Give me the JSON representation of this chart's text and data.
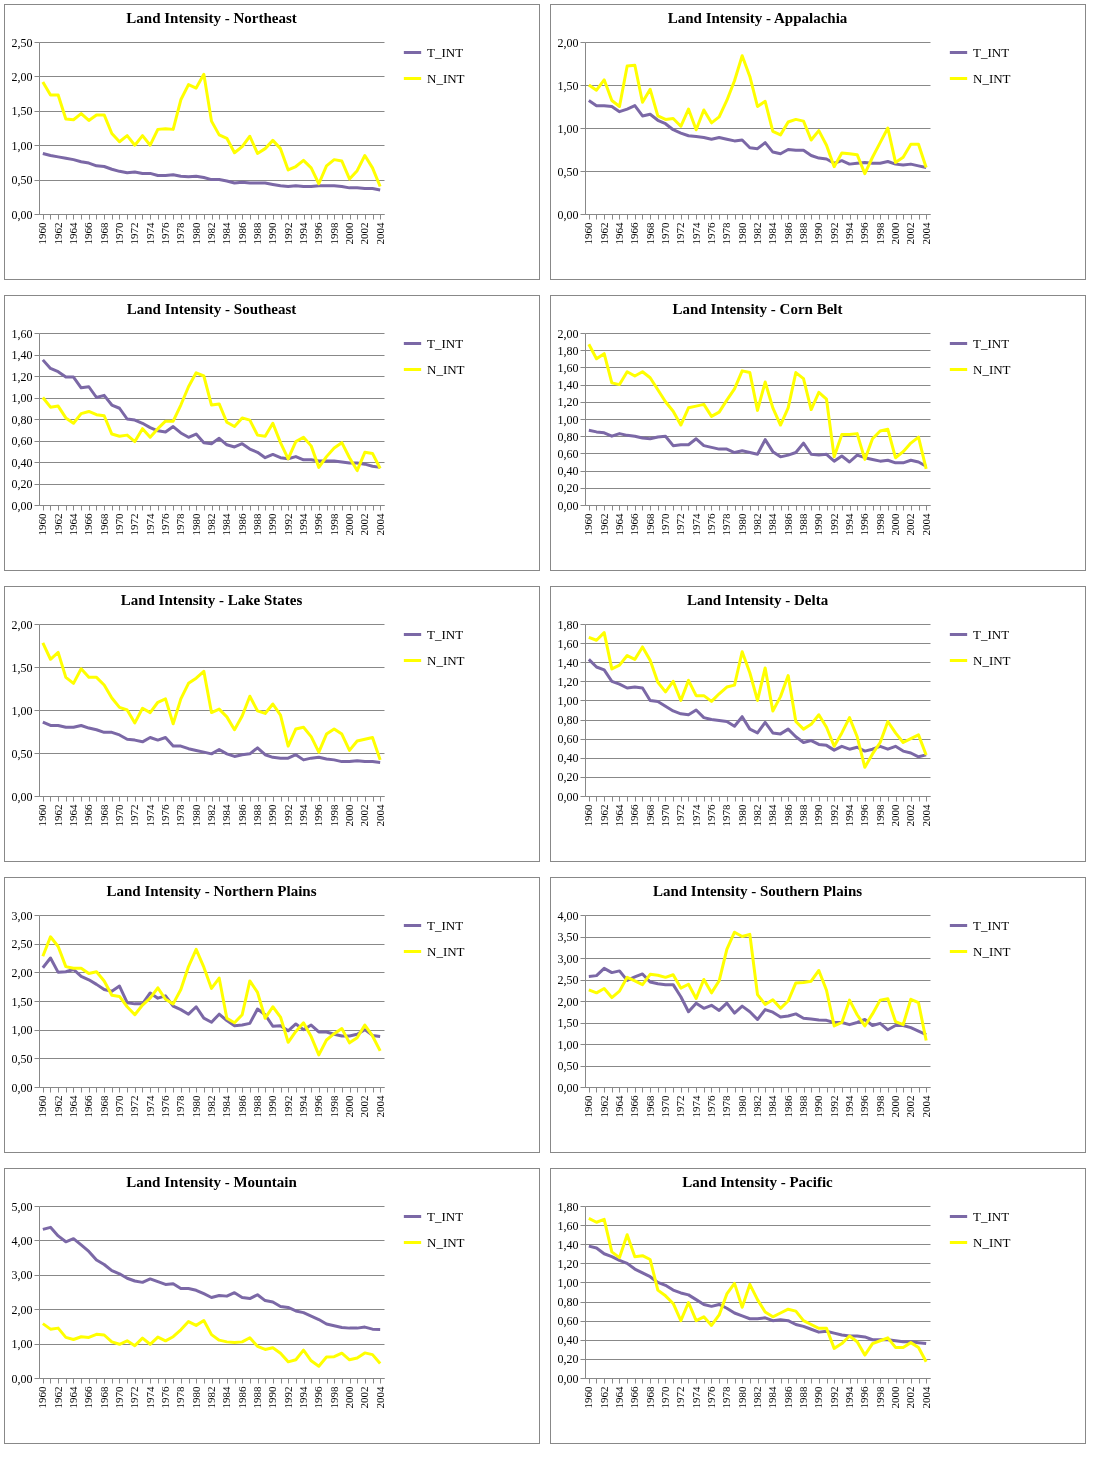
{
  "chart_data": [
    {
      "type": "line",
      "title": "Land Intensity - Northeast",
      "categories": [
        "1960",
        null,
        "1962",
        null,
        "1964",
        null,
        "1966",
        null,
        "1968",
        null,
        "1970",
        null,
        "1972",
        null,
        "1974",
        null,
        "1976",
        null,
        "1978",
        null,
        "1980",
        null,
        "1982",
        null,
        "1984",
        null,
        "1986",
        null,
        "1988",
        null,
        "1990",
        null,
        "1992",
        null,
        "1994",
        null,
        "1996",
        null,
        "1998",
        null,
        "2000",
        null,
        "2002",
        null,
        "2004"
      ],
      "ylim": [
        0,
        2.5
      ],
      "yticks": [
        {
          "value": 0,
          "label": "0,00"
        },
        {
          "value": 0.5,
          "label": "0,50"
        },
        {
          "value": 1,
          "label": "1,00"
        },
        {
          "value": 1.5,
          "label": "1,50"
        },
        {
          "value": 2,
          "label": "2,00"
        },
        {
          "value": 2.5,
          "label": "2,50"
        }
      ],
      "grid": "y",
      "legend": "right",
      "series": [
        {
          "name": "T_INT",
          "color": "#7b68a6",
          "values": [
            0.88,
            0.85,
            0.83,
            0.81,
            0.79,
            0.76,
            0.74,
            0.7,
            0.69,
            0.65,
            0.62,
            0.6,
            0.61,
            0.59,
            0.59,
            0.56,
            0.56,
            0.57,
            0.55,
            0.54,
            0.55,
            0.53,
            0.5,
            0.5,
            0.48,
            0.45,
            0.46,
            0.45,
            0.45,
            0.45,
            0.43,
            0.41,
            0.4,
            0.41,
            0.4,
            0.4,
            0.41,
            0.41,
            0.41,
            0.4,
            0.38,
            0.38,
            0.37,
            0.37,
            0.35
          ]
        },
        {
          "name": "N_INT",
          "color": "#ffff00",
          "values": [
            1.92,
            1.73,
            1.73,
            1.38,
            1.37,
            1.46,
            1.36,
            1.44,
            1.44,
            1.17,
            1.05,
            1.14,
            1.0,
            1.14,
            1.0,
            1.23,
            1.24,
            1.23,
            1.66,
            1.88,
            1.83,
            2.03,
            1.35,
            1.15,
            1.1,
            0.89,
            0.98,
            1.13,
            0.88,
            0.95,
            1.07,
            0.95,
            0.64,
            0.69,
            0.78,
            0.67,
            0.44,
            0.7,
            0.79,
            0.77,
            0.51,
            0.63,
            0.85,
            0.67,
            0.4
          ]
        }
      ]
    },
    {
      "type": "line",
      "title": "Land Intensity - Appalachia",
      "categories": [
        "1960",
        null,
        "1962",
        null,
        "1964",
        null,
        "1966",
        null,
        "1968",
        null,
        "1970",
        null,
        "1972",
        null,
        "1974",
        null,
        "1976",
        null,
        "1978",
        null,
        "1980",
        null,
        "1982",
        null,
        "1984",
        null,
        "1986",
        null,
        "1988",
        null,
        "1990",
        null,
        "1992",
        null,
        "1994",
        null,
        "1996",
        null,
        "1998",
        null,
        "2000",
        null,
        "2002",
        null,
        "2004"
      ],
      "ylim": [
        0,
        2
      ],
      "yticks": [
        {
          "value": 0,
          "label": "0,00"
        },
        {
          "value": 0.5,
          "label": "0,50"
        },
        {
          "value": 1,
          "label": "1,00"
        },
        {
          "value": 1.5,
          "label": "1,50"
        },
        {
          "value": 2,
          "label": "2,00"
        }
      ],
      "grid": "y",
      "legend": "right",
      "series": [
        {
          "name": "T_INT",
          "color": "#7b68a6",
          "values": [
            1.32,
            1.26,
            1.26,
            1.25,
            1.19,
            1.22,
            1.26,
            1.14,
            1.16,
            1.09,
            1.05,
            0.98,
            0.94,
            0.91,
            0.9,
            0.89,
            0.87,
            0.89,
            0.87,
            0.85,
            0.86,
            0.77,
            0.76,
            0.83,
            0.72,
            0.7,
            0.75,
            0.74,
            0.74,
            0.68,
            0.65,
            0.64,
            0.59,
            0.62,
            0.58,
            0.59,
            0.6,
            0.59,
            0.59,
            0.61,
            0.58,
            0.57,
            0.58,
            0.56,
            0.54
          ]
        },
        {
          "name": "N_INT",
          "color": "#ffff00",
          "values": [
            1.5,
            1.44,
            1.56,
            1.32,
            1.25,
            1.72,
            1.73,
            1.3,
            1.45,
            1.14,
            1.1,
            1.11,
            1.02,
            1.22,
            0.98,
            1.21,
            1.06,
            1.13,
            1.32,
            1.55,
            1.84,
            1.6,
            1.25,
            1.31,
            0.96,
            0.92,
            1.07,
            1.1,
            1.08,
            0.86,
            0.97,
            0.8,
            0.55,
            0.71,
            0.7,
            0.69,
            0.47,
            0.66,
            0.83,
            1.0,
            0.6,
            0.66,
            0.81,
            0.81,
            0.54
          ]
        }
      ]
    },
    {
      "type": "line",
      "title": "Land Intensity - Southeast",
      "categories": [
        "1960",
        null,
        "1962",
        null,
        "1964",
        null,
        "1966",
        null,
        "1968",
        null,
        "1970",
        null,
        "1972",
        null,
        "1974",
        null,
        "1976",
        null,
        "1978",
        null,
        "1980",
        null,
        "1982",
        null,
        "1984",
        null,
        "1986",
        null,
        "1988",
        null,
        "1990",
        null,
        "1992",
        null,
        "1994",
        null,
        "1996",
        null,
        "1998",
        null,
        "2000",
        null,
        "2002",
        null,
        "2004"
      ],
      "ylim": [
        0,
        1.6
      ],
      "yticks": [
        {
          "value": 0,
          "label": "0,00"
        },
        {
          "value": 0.2,
          "label": "0,20"
        },
        {
          "value": 0.4,
          "label": "0,40"
        },
        {
          "value": 0.6,
          "label": "0,60"
        },
        {
          "value": 0.8,
          "label": "0,80"
        },
        {
          "value": 1,
          "label": "1,00"
        },
        {
          "value": 1.2,
          "label": "1,20"
        },
        {
          "value": 1.4,
          "label": "1,40"
        },
        {
          "value": 1.6,
          "label": "1,60"
        }
      ],
      "grid": "y",
      "legend": "right",
      "series": [
        {
          "name": "T_INT",
          "color": "#7b68a6",
          "values": [
            1.35,
            1.27,
            1.24,
            1.19,
            1.19,
            1.09,
            1.1,
            1.0,
            1.02,
            0.93,
            0.9,
            0.8,
            0.79,
            0.76,
            0.72,
            0.69,
            0.68,
            0.73,
            0.67,
            0.63,
            0.66,
            0.58,
            0.57,
            0.62,
            0.56,
            0.54,
            0.57,
            0.52,
            0.49,
            0.44,
            0.47,
            0.44,
            0.43,
            0.45,
            0.42,
            0.42,
            0.41,
            0.41,
            0.41,
            0.4,
            0.39,
            0.39,
            0.38,
            0.36,
            0.35
          ]
        },
        {
          "name": "N_INT",
          "color": "#ffff00",
          "values": [
            1.0,
            0.91,
            0.92,
            0.81,
            0.76,
            0.85,
            0.87,
            0.84,
            0.83,
            0.66,
            0.64,
            0.65,
            0.59,
            0.71,
            0.63,
            0.71,
            0.78,
            0.78,
            0.93,
            1.1,
            1.23,
            1.2,
            0.93,
            0.94,
            0.77,
            0.73,
            0.81,
            0.79,
            0.65,
            0.64,
            0.76,
            0.58,
            0.43,
            0.59,
            0.63,
            0.55,
            0.35,
            0.45,
            0.53,
            0.58,
            0.44,
            0.32,
            0.49,
            0.48,
            0.34
          ]
        }
      ]
    },
    {
      "type": "line",
      "title": "Land Intensity - Corn Belt",
      "categories": [
        "1960",
        null,
        "1962",
        null,
        "1964",
        null,
        "1966",
        null,
        "1968",
        null,
        "1970",
        null,
        "1972",
        null,
        "1974",
        null,
        "1976",
        null,
        "1978",
        null,
        "1980",
        null,
        "1982",
        null,
        "1984",
        null,
        "1986",
        null,
        "1988",
        null,
        "1990",
        null,
        "1992",
        null,
        "1994",
        null,
        "1996",
        null,
        "1998",
        null,
        "2000",
        null,
        "2002",
        null,
        "2004"
      ],
      "ylim": [
        0,
        2
      ],
      "yticks": [
        {
          "value": 0,
          "label": "0,00"
        },
        {
          "value": 0.2,
          "label": "0,20"
        },
        {
          "value": 0.4,
          "label": "0,40"
        },
        {
          "value": 0.6,
          "label": "0,60"
        },
        {
          "value": 0.8,
          "label": "0,80"
        },
        {
          "value": 1,
          "label": "1,00"
        },
        {
          "value": 1.2,
          "label": "1,20"
        },
        {
          "value": 1.4,
          "label": "1,40"
        },
        {
          "value": 1.6,
          "label": "1,60"
        },
        {
          "value": 1.8,
          "label": "1,80"
        },
        {
          "value": 2,
          "label": "2,00"
        }
      ],
      "grid": "y",
      "legend": "right",
      "series": [
        {
          "name": "T_INT",
          "color": "#7b68a6",
          "values": [
            0.87,
            0.85,
            0.84,
            0.8,
            0.83,
            0.81,
            0.8,
            0.78,
            0.77,
            0.79,
            0.8,
            0.69,
            0.7,
            0.7,
            0.77,
            0.69,
            0.67,
            0.65,
            0.65,
            0.61,
            0.63,
            0.61,
            0.59,
            0.76,
            0.62,
            0.56,
            0.58,
            0.61,
            0.72,
            0.59,
            0.58,
            0.59,
            0.51,
            0.57,
            0.5,
            0.58,
            0.55,
            0.53,
            0.51,
            0.52,
            0.49,
            0.49,
            0.52,
            0.5,
            0.45
          ]
        },
        {
          "name": "N_INT",
          "color": "#ffff00",
          "values": [
            1.87,
            1.7,
            1.76,
            1.42,
            1.4,
            1.55,
            1.5,
            1.55,
            1.48,
            1.34,
            1.2,
            1.09,
            0.93,
            1.13,
            1.15,
            1.17,
            1.03,
            1.08,
            1.22,
            1.35,
            1.56,
            1.54,
            1.1,
            1.43,
            1.13,
            0.93,
            1.13,
            1.54,
            1.47,
            1.11,
            1.31,
            1.23,
            0.56,
            0.82,
            0.82,
            0.83,
            0.53,
            0.77,
            0.86,
            0.88,
            0.55,
            0.62,
            0.72,
            0.79,
            0.42
          ]
        }
      ]
    },
    {
      "type": "line",
      "title": "Land Intensity - Lake States",
      "categories": [
        "1960",
        null,
        "1962",
        null,
        "1964",
        null,
        "1966",
        null,
        "1968",
        null,
        "1970",
        null,
        "1972",
        null,
        "1974",
        null,
        "1976",
        null,
        "1978",
        null,
        "1980",
        null,
        "1982",
        null,
        "1984",
        null,
        "1986",
        null,
        "1988",
        null,
        "1990",
        null,
        "1992",
        null,
        "1994",
        null,
        "1996",
        null,
        "1998",
        null,
        "2000",
        null,
        "2002",
        null,
        "2004"
      ],
      "ylim": [
        0,
        2
      ],
      "yticks": [
        {
          "value": 0,
          "label": "0,00"
        },
        {
          "value": 0.5,
          "label": "0,50"
        },
        {
          "value": 1,
          "label": "1,00"
        },
        {
          "value": 1.5,
          "label": "1,50"
        },
        {
          "value": 2,
          "label": "2,00"
        }
      ],
      "grid": "y",
      "legend": "right",
      "series": [
        {
          "name": "T_INT",
          "color": "#7b68a6",
          "values": [
            0.86,
            0.82,
            0.82,
            0.8,
            0.8,
            0.82,
            0.79,
            0.77,
            0.74,
            0.74,
            0.71,
            0.66,
            0.65,
            0.63,
            0.68,
            0.65,
            0.68,
            0.58,
            0.58,
            0.55,
            0.53,
            0.51,
            0.49,
            0.54,
            0.49,
            0.46,
            0.48,
            0.49,
            0.56,
            0.48,
            0.45,
            0.44,
            0.44,
            0.48,
            0.42,
            0.44,
            0.45,
            0.43,
            0.42,
            0.4,
            0.4,
            0.41,
            0.4,
            0.4,
            0.39
          ]
        },
        {
          "name": "N_INT",
          "color": "#ffff00",
          "values": [
            1.78,
            1.59,
            1.67,
            1.38,
            1.31,
            1.48,
            1.38,
            1.38,
            1.29,
            1.14,
            1.03,
            1.0,
            0.85,
            1.02,
            0.97,
            1.09,
            1.13,
            0.84,
            1.13,
            1.31,
            1.37,
            1.45,
            0.97,
            1.01,
            0.92,
            0.77,
            0.93,
            1.16,
            0.99,
            0.96,
            1.07,
            0.94,
            0.58,
            0.78,
            0.8,
            0.69,
            0.51,
            0.72,
            0.78,
            0.72,
            0.53,
            0.64,
            0.66,
            0.68,
            0.42
          ]
        }
      ]
    },
    {
      "type": "line",
      "title": "Land Intensity - Delta",
      "categories": [
        "1960",
        null,
        "1962",
        null,
        "1964",
        null,
        "1966",
        null,
        "1968",
        null,
        "1970",
        null,
        "1972",
        null,
        "1974",
        null,
        "1976",
        null,
        "1978",
        null,
        "1980",
        null,
        "1982",
        null,
        "1984",
        null,
        "1986",
        null,
        "1988",
        null,
        "1990",
        null,
        "1992",
        null,
        "1994",
        null,
        "1996",
        null,
        "1998",
        null,
        "2000",
        null,
        "2002",
        null,
        "2004"
      ],
      "ylim": [
        0,
        1.8
      ],
      "yticks": [
        {
          "value": 0,
          "label": "0,00"
        },
        {
          "value": 0.2,
          "label": "0,20"
        },
        {
          "value": 0.4,
          "label": "0,40"
        },
        {
          "value": 0.6,
          "label": "0,60"
        },
        {
          "value": 0.8,
          "label": "0,80"
        },
        {
          "value": 1,
          "label": "1,00"
        },
        {
          "value": 1.2,
          "label": "1,20"
        },
        {
          "value": 1.4,
          "label": "1,40"
        },
        {
          "value": 1.6,
          "label": "1,60"
        },
        {
          "value": 1.8,
          "label": "1,80"
        }
      ],
      "grid": "y",
      "legend": "right",
      "series": [
        {
          "name": "T_INT",
          "color": "#7b68a6",
          "values": [
            1.43,
            1.35,
            1.32,
            1.2,
            1.17,
            1.13,
            1.14,
            1.13,
            1.0,
            0.99,
            0.94,
            0.89,
            0.86,
            0.85,
            0.9,
            0.82,
            0.8,
            0.79,
            0.78,
            0.73,
            0.83,
            0.7,
            0.66,
            0.77,
            0.66,
            0.65,
            0.7,
            0.62,
            0.56,
            0.58,
            0.54,
            0.53,
            0.48,
            0.52,
            0.49,
            0.51,
            0.47,
            0.49,
            0.52,
            0.49,
            0.52,
            0.47,
            0.45,
            0.41,
            0.43
          ]
        },
        {
          "name": "N_INT",
          "color": "#ffff00",
          "values": [
            1.66,
            1.63,
            1.71,
            1.33,
            1.37,
            1.47,
            1.43,
            1.56,
            1.42,
            1.19,
            1.09,
            1.2,
            1.0,
            1.21,
            1.05,
            1.05,
            0.99,
            1.07,
            1.14,
            1.16,
            1.51,
            1.29,
            1.0,
            1.34,
            0.89,
            1.04,
            1.26,
            0.78,
            0.7,
            0.75,
            0.85,
            0.72,
            0.52,
            0.66,
            0.82,
            0.62,
            0.3,
            0.44,
            0.56,
            0.78,
            0.66,
            0.56,
            0.6,
            0.64,
            0.43
          ]
        }
      ]
    },
    {
      "type": "line",
      "title": "Land Intensity - Northern Plains",
      "categories": [
        "1960",
        null,
        "1962",
        null,
        "1964",
        null,
        "1966",
        null,
        "1968",
        null,
        "1970",
        null,
        "1972",
        null,
        "1974",
        null,
        "1976",
        null,
        "1978",
        null,
        "1980",
        null,
        "1982",
        null,
        "1984",
        null,
        "1986",
        null,
        "1988",
        null,
        "1990",
        null,
        "1992",
        null,
        "1994",
        null,
        "1996",
        null,
        "1998",
        null,
        "2000",
        null,
        "2002",
        null,
        "2004"
      ],
      "ylim": [
        0,
        3
      ],
      "yticks": [
        {
          "value": 0,
          "label": "0,00"
        },
        {
          "value": 0.5,
          "label": "0,50"
        },
        {
          "value": 1,
          "label": "1,00"
        },
        {
          "value": 1.5,
          "label": "1,50"
        },
        {
          "value": 2,
          "label": "2,00"
        },
        {
          "value": 2.5,
          "label": "2,50"
        },
        {
          "value": 3,
          "label": "3,00"
        }
      ],
      "grid": "y",
      "legend": "right",
      "series": [
        {
          "name": "T_INT",
          "color": "#7b68a6",
          "values": [
            2.08,
            2.25,
            2.0,
            2.01,
            2.05,
            1.93,
            1.87,
            1.79,
            1.7,
            1.67,
            1.76,
            1.47,
            1.45,
            1.45,
            1.64,
            1.55,
            1.59,
            1.41,
            1.35,
            1.27,
            1.4,
            1.2,
            1.13,
            1.27,
            1.16,
            1.07,
            1.08,
            1.11,
            1.36,
            1.26,
            1.06,
            1.07,
            0.98,
            1.1,
            1.0,
            1.08,
            0.96,
            0.96,
            0.92,
            0.89,
            0.89,
            0.92,
            1.0,
            0.9,
            0.88
          ]
        },
        {
          "name": "N_INT",
          "color": "#ffff00",
          "values": [
            2.28,
            2.62,
            2.45,
            2.1,
            2.07,
            2.07,
            1.98,
            2.01,
            1.85,
            1.6,
            1.58,
            1.4,
            1.26,
            1.43,
            1.55,
            1.73,
            1.53,
            1.45,
            1.7,
            2.1,
            2.4,
            2.09,
            1.72,
            1.9,
            1.2,
            1.12,
            1.26,
            1.85,
            1.65,
            1.2,
            1.4,
            1.22,
            0.78,
            0.97,
            1.12,
            0.88,
            0.56,
            0.82,
            0.93,
            1.02,
            0.77,
            0.86,
            1.08,
            0.89,
            0.63
          ]
        }
      ]
    },
    {
      "type": "line",
      "title": "Land Intensity - Southern Plains",
      "categories": [
        "1960",
        null,
        "1962",
        null,
        "1964",
        null,
        "1966",
        null,
        "1968",
        null,
        "1970",
        null,
        "1972",
        null,
        "1974",
        null,
        "1976",
        null,
        "1978",
        null,
        "1980",
        null,
        "1982",
        null,
        "1984",
        null,
        "1986",
        null,
        "1988",
        null,
        "1990",
        null,
        "1992",
        null,
        "1994",
        null,
        "1996",
        null,
        "1998",
        null,
        "2000",
        null,
        "2002",
        null,
        "2004"
      ],
      "ylim": [
        0,
        4
      ],
      "yticks": [
        {
          "value": 0,
          "label": "0,00"
        },
        {
          "value": 0.5,
          "label": "0,50"
        },
        {
          "value": 1,
          "label": "1,00"
        },
        {
          "value": 1.5,
          "label": "1,50"
        },
        {
          "value": 2,
          "label": "2,00"
        },
        {
          "value": 2.5,
          "label": "2,50"
        },
        {
          "value": 3,
          "label": "3,00"
        },
        {
          "value": 3.5,
          "label": "3,50"
        },
        {
          "value": 4,
          "label": "4,00"
        }
      ],
      "grid": "y",
      "legend": "right",
      "series": [
        {
          "name": "T_INT",
          "color": "#7b68a6",
          "values": [
            2.57,
            2.59,
            2.76,
            2.66,
            2.7,
            2.48,
            2.56,
            2.63,
            2.44,
            2.4,
            2.38,
            2.38,
            2.1,
            1.75,
            1.95,
            1.83,
            1.9,
            1.78,
            1.95,
            1.72,
            1.88,
            1.75,
            1.57,
            1.8,
            1.74,
            1.63,
            1.65,
            1.7,
            1.6,
            1.58,
            1.56,
            1.55,
            1.5,
            1.5,
            1.45,
            1.5,
            1.57,
            1.43,
            1.48,
            1.33,
            1.43,
            1.43,
            1.38,
            1.3,
            1.22
          ]
        },
        {
          "name": "N_INT",
          "color": "#ffff00",
          "values": [
            2.26,
            2.19,
            2.29,
            2.08,
            2.23,
            2.55,
            2.47,
            2.38,
            2.62,
            2.6,
            2.55,
            2.61,
            2.3,
            2.39,
            2.06,
            2.5,
            2.19,
            2.47,
            3.2,
            3.6,
            3.5,
            3.55,
            2.15,
            1.92,
            2.03,
            1.83,
            2.0,
            2.42,
            2.43,
            2.46,
            2.71,
            2.25,
            1.42,
            1.5,
            2.02,
            1.68,
            1.42,
            1.7,
            2.02,
            2.05,
            1.52,
            1.45,
            2.04,
            1.96,
            1.08
          ]
        }
      ]
    },
    {
      "type": "line",
      "title": "Land Intensity - Mountain",
      "categories": [
        "1960",
        null,
        "1962",
        null,
        "1964",
        null,
        "1966",
        null,
        "1968",
        null,
        "1970",
        null,
        "1972",
        null,
        "1974",
        null,
        "1976",
        null,
        "1978",
        null,
        "1980",
        null,
        "1982",
        null,
        "1984",
        null,
        "1986",
        null,
        "1988",
        null,
        "1990",
        null,
        "1992",
        null,
        "1994",
        null,
        "1996",
        null,
        "1998",
        null,
        "2000",
        null,
        "2002",
        null,
        "2004"
      ],
      "ylim": [
        0,
        5
      ],
      "yticks": [
        {
          "value": 0,
          "label": "0,00"
        },
        {
          "value": 1,
          "label": "1,00"
        },
        {
          "value": 2,
          "label": "2,00"
        },
        {
          "value": 3,
          "label": "3,00"
        },
        {
          "value": 4,
          "label": "4,00"
        },
        {
          "value": 5,
          "label": "5,00"
        }
      ],
      "grid": "y",
      "legend": "right",
      "series": [
        {
          "name": "T_INT",
          "color": "#7b68a6",
          "values": [
            4.32,
            4.38,
            4.13,
            3.96,
            4.05,
            3.87,
            3.68,
            3.43,
            3.3,
            3.12,
            3.03,
            2.9,
            2.82,
            2.78,
            2.88,
            2.8,
            2.72,
            2.74,
            2.6,
            2.6,
            2.55,
            2.45,
            2.34,
            2.4,
            2.38,
            2.48,
            2.34,
            2.31,
            2.42,
            2.25,
            2.21,
            2.08,
            2.05,
            1.95,
            1.9,
            1.8,
            1.7,
            1.57,
            1.52,
            1.47,
            1.45,
            1.45,
            1.48,
            1.42,
            1.41
          ]
        },
        {
          "name": "N_INT",
          "color": "#ffff00",
          "values": [
            1.58,
            1.42,
            1.45,
            1.18,
            1.12,
            1.2,
            1.18,
            1.27,
            1.25,
            1.05,
            0.98,
            1.08,
            0.94,
            1.16,
            0.98,
            1.19,
            1.08,
            1.2,
            1.4,
            1.64,
            1.53,
            1.67,
            1.26,
            1.1,
            1.05,
            1.03,
            1.05,
            1.17,
            0.92,
            0.83,
            0.88,
            0.72,
            0.47,
            0.53,
            0.81,
            0.5,
            0.34,
            0.61,
            0.62,
            0.72,
            0.53,
            0.58,
            0.73,
            0.68,
            0.42
          ]
        }
      ]
    },
    {
      "type": "line",
      "title": "Land Intensity - Pacific",
      "categories": [
        "1960",
        null,
        "1962",
        null,
        "1964",
        null,
        "1966",
        null,
        "1968",
        null,
        "1970",
        null,
        "1972",
        null,
        "1974",
        null,
        "1976",
        null,
        "1978",
        null,
        "1980",
        null,
        "1982",
        null,
        "1984",
        null,
        "1986",
        null,
        "1988",
        null,
        "1990",
        null,
        "1992",
        null,
        "1994",
        null,
        "1996",
        null,
        "1998",
        null,
        "2000",
        null,
        "2002",
        null,
        "2004"
      ],
      "ylim": [
        0,
        1.8
      ],
      "yticks": [
        {
          "value": 0,
          "label": "0,00"
        },
        {
          "value": 0.2,
          "label": "0,20"
        },
        {
          "value": 0.4,
          "label": "0,40"
        },
        {
          "value": 0.6,
          "label": "0,60"
        },
        {
          "value": 0.8,
          "label": "0,80"
        },
        {
          "value": 1,
          "label": "1,00"
        },
        {
          "value": 1.2,
          "label": "1,20"
        },
        {
          "value": 1.4,
          "label": "1,40"
        },
        {
          "value": 1.6,
          "label": "1,60"
        },
        {
          "value": 1.8,
          "label": "1,80"
        }
      ],
      "grid": "y",
      "legend": "right",
      "series": [
        {
          "name": "T_INT",
          "color": "#7b68a6",
          "values": [
            1.38,
            1.36,
            1.3,
            1.27,
            1.23,
            1.2,
            1.14,
            1.1,
            1.06,
            1.0,
            0.97,
            0.92,
            0.89,
            0.87,
            0.82,
            0.77,
            0.75,
            0.77,
            0.73,
            0.68,
            0.65,
            0.62,
            0.62,
            0.63,
            0.6,
            0.61,
            0.6,
            0.56,
            0.54,
            0.51,
            0.48,
            0.49,
            0.47,
            0.45,
            0.44,
            0.44,
            0.43,
            0.4,
            0.4,
            0.4,
            0.39,
            0.38,
            0.38,
            0.37,
            0.36
          ]
        },
        {
          "name": "N_INT",
          "color": "#ffff00",
          "values": [
            1.67,
            1.63,
            1.66,
            1.32,
            1.26,
            1.5,
            1.27,
            1.28,
            1.24,
            0.92,
            0.86,
            0.78,
            0.6,
            0.79,
            0.6,
            0.64,
            0.55,
            0.66,
            0.88,
            0.99,
            0.74,
            0.98,
            0.82,
            0.69,
            0.64,
            0.68,
            0.72,
            0.7,
            0.6,
            0.56,
            0.52,
            0.52,
            0.31,
            0.36,
            0.44,
            0.38,
            0.24,
            0.36,
            0.39,
            0.42,
            0.32,
            0.32,
            0.37,
            0.32,
            0.17
          ]
        }
      ]
    }
  ]
}
